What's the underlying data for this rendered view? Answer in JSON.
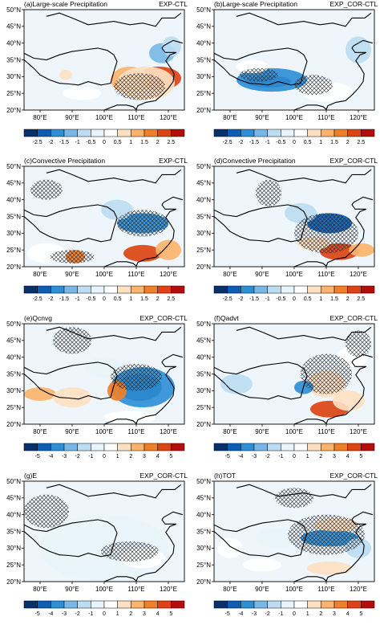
{
  "panels": [
    {
      "id": "a",
      "title": "(a)Large-scale Precipitation",
      "case": "EXP-CTL",
      "cbar": "p"
    },
    {
      "id": "b",
      "title": "(b)Large-scale Precipitation",
      "case": "EXP_COR-CTL",
      "cbar": "p"
    },
    {
      "id": "c",
      "title": "(c)Convective Precipitation",
      "case": "EXP-CTL",
      "cbar": "p"
    },
    {
      "id": "d",
      "title": "(d)Convective Precipitation",
      "case": "EXP_COR-CTL",
      "cbar": "p"
    },
    {
      "id": "e",
      "title": "(e)Qcnvg",
      "case": "EXP_COR-CTL",
      "cbar": "q"
    },
    {
      "id": "f",
      "title": "(f)Qadvt",
      "case": "EXP_COR-CTL",
      "cbar": "q"
    },
    {
      "id": "g",
      "title": "(g)E",
      "case": "EXP_COR-CTL",
      "cbar": "q"
    },
    {
      "id": "h",
      "title": "(h)TOT",
      "case": "EXP_COR-CTL",
      "cbar": "q"
    }
  ],
  "chart_data": {
    "type": "heatmap",
    "x_ticks": [
      "80°E",
      "90°E",
      "100°E",
      "110°E",
      "120°E"
    ],
    "y_ticks": [
      "20°N",
      "25°N",
      "30°N",
      "35°N",
      "40°N",
      "45°N",
      "50°N"
    ],
    "xlim": [
      75,
      125
    ],
    "ylim": [
      20,
      50
    ],
    "colorbar_precip": {
      "labels": [
        "-2.5",
        "-2",
        "-1.5",
        "-1",
        "-0.5",
        "0",
        "0.5",
        "1",
        "1.5",
        "2",
        "2.5"
      ],
      "colors": [
        "#08306b",
        "#0c5db5",
        "#2f8fd6",
        "#79b8e6",
        "#bcdcf2",
        "#e8f3fb",
        "#ffffff",
        "#fde0c2",
        "#fbb36b",
        "#f07f2a",
        "#dc4414",
        "#b20e0e"
      ]
    },
    "colorbar_moisture": {
      "labels": [
        "-5",
        "-4",
        "-3",
        "-2",
        "-1",
        "0",
        "1",
        "2",
        "3",
        "4",
        "5"
      ],
      "colors": [
        "#08306b",
        "#0c5db5",
        "#2f8fd6",
        "#79b8e6",
        "#bcdcf2",
        "#e8f3fb",
        "#ffffff",
        "#fde0c2",
        "#fbb36b",
        "#f07f2a",
        "#dc4414",
        "#b20e0e"
      ]
    },
    "fields": {
      "a": [
        {
          "lon": 117,
          "lat": 29.5,
          "value": 2.5,
          "rx": 7,
          "ry": 3.5
        },
        {
          "lon": 108,
          "lat": 29,
          "value": 1.5,
          "rx": 6,
          "ry": 4
        },
        {
          "lon": 113,
          "lat": 28,
          "value": 1.0,
          "rx": 9,
          "ry": 5
        },
        {
          "lon": 88,
          "lat": 30.5,
          "value": 1.0,
          "rx": 2,
          "ry": 1.5
        },
        {
          "lon": 118,
          "lat": 37,
          "value": -1.0,
          "rx": 4,
          "ry": 3
        },
        {
          "lon": 121,
          "lat": 39,
          "value": -0.5,
          "rx": 3,
          "ry": 3
        },
        {
          "lon": 93,
          "lat": 25,
          "value": 0.5,
          "rx": 6,
          "ry": 2
        }
      ],
      "b": [
        {
          "lon": 92,
          "lat": 28.5,
          "value": -2.5,
          "rx": 7,
          "ry": 1.8
        },
        {
          "lon": 93,
          "lat": 29,
          "value": -1.5,
          "rx": 11,
          "ry": 3.5
        },
        {
          "lon": 110,
          "lat": 25.5,
          "value": 0.5,
          "rx": 8,
          "ry": 3
        },
        {
          "lon": 120,
          "lat": 38,
          "value": -0.5,
          "rx": 4,
          "ry": 4
        },
        {
          "lon": 87,
          "lat": 33,
          "value": 0.5,
          "rx": 5,
          "ry": 2
        }
      ],
      "c": [
        {
          "lon": 112,
          "lat": 33,
          "value": -1.5,
          "rx": 8,
          "ry": 3
        },
        {
          "lon": 112,
          "lat": 24,
          "value": 2.5,
          "rx": 6,
          "ry": 2.5
        },
        {
          "lon": 91,
          "lat": 23,
          "value": 2.0,
          "rx": 3,
          "ry": 2
        },
        {
          "lon": 120,
          "lat": 25,
          "value": 1.5,
          "rx": 4,
          "ry": 3
        },
        {
          "lon": 82,
          "lat": 24,
          "value": 0.5,
          "rx": 6,
          "ry": 3
        },
        {
          "lon": 104,
          "lat": 37,
          "value": -0.5,
          "rx": 5,
          "ry": 3
        }
      ],
      "d": [
        {
          "lon": 111,
          "lat": 33,
          "value": -2.0,
          "rx": 7,
          "ry": 3
        },
        {
          "lon": 114,
          "lat": 24.5,
          "value": 2.5,
          "rx": 6,
          "ry": 2.5
        },
        {
          "lon": 106,
          "lat": 27,
          "value": 1.0,
          "rx": 5,
          "ry": 2
        },
        {
          "lon": 121,
          "lat": 25,
          "value": 1.5,
          "rx": 4,
          "ry": 2
        },
        {
          "lon": 102,
          "lat": 36,
          "value": -0.5,
          "rx": 5,
          "ry": 3
        }
      ],
      "e": [
        {
          "lon": 111,
          "lat": 31,
          "value": -5.0,
          "rx": 7,
          "ry": 4
        },
        {
          "lon": 112,
          "lat": 31,
          "value": -3.0,
          "rx": 10,
          "ry": 6
        },
        {
          "lon": 80,
          "lat": 29,
          "value": 3.0,
          "rx": 5,
          "ry": 2
        },
        {
          "lon": 90,
          "lat": 28,
          "value": 2.0,
          "rx": 6,
          "ry": 3
        },
        {
          "lon": 104,
          "lat": 30,
          "value": 4.0,
          "rx": 3,
          "ry": 3
        },
        {
          "lon": 108,
          "lat": 22,
          "value": 1.0,
          "rx": 8,
          "ry": 2
        },
        {
          "lon": 100,
          "lat": 37,
          "value": -0.5,
          "rx": 6,
          "ry": 3
        }
      ],
      "f": [
        {
          "lon": 111,
          "lat": 24.5,
          "value": 5.0,
          "rx": 6,
          "ry": 2.5
        },
        {
          "lon": 110,
          "lat": 32,
          "value": 2.0,
          "rx": 6,
          "ry": 4
        },
        {
          "lon": 103,
          "lat": 31,
          "value": -3.0,
          "rx": 3,
          "ry": 2
        },
        {
          "lon": 117,
          "lat": 27,
          "value": 2.0,
          "rx": 5,
          "ry": 3
        },
        {
          "lon": 82,
          "lat": 32,
          "value": -1.0,
          "rx": 5,
          "ry": 3
        },
        {
          "lon": 118,
          "lat": 40,
          "value": 1.0,
          "rx": 5,
          "ry": 3
        }
      ],
      "g": [
        {
          "lon": 100,
          "lat": 30,
          "value": -0.5,
          "rx": 20,
          "ry": 10
        },
        {
          "lon": 112,
          "lat": 27,
          "value": 0.5,
          "rx": 7,
          "ry": 3
        }
      ],
      "h": [
        {
          "lon": 111,
          "lat": 33,
          "value": -3.0,
          "rx": 9,
          "ry": 2.5
        },
        {
          "lon": 113,
          "lat": 37,
          "value": 2.0,
          "rx": 7,
          "ry": 2
        },
        {
          "lon": 111,
          "lat": 24,
          "value": 2.0,
          "rx": 7,
          "ry": 2
        },
        {
          "lon": 90,
          "lat": 25,
          "value": 1.0,
          "rx": 6,
          "ry": 2
        },
        {
          "lon": 80,
          "lat": 30,
          "value": 0.5,
          "rx": 4,
          "ry": 3
        },
        {
          "lon": 95,
          "lat": 33,
          "value": -0.5,
          "rx": 7,
          "ry": 3
        },
        {
          "lon": 120,
          "lat": 30,
          "value": -1.0,
          "rx": 4,
          "ry": 3
        }
      ]
    },
    "hatching": {
      "a": [
        {
          "lon": 111,
          "lat": 27,
          "rx": 8,
          "ry": 4
        }
      ],
      "b": [
        {
          "lon": 106,
          "lat": 27.5,
          "rx": 6,
          "ry": 3
        },
        {
          "lon": 89,
          "lat": 30.5,
          "rx": 6,
          "ry": 2
        }
      ],
      "c": [
        {
          "lon": 112,
          "lat": 33,
          "rx": 8,
          "ry": 4
        },
        {
          "lon": 90,
          "lat": 23,
          "rx": 7,
          "ry": 2
        },
        {
          "lon": 82,
          "lat": 43,
          "rx": 5,
          "ry": 3
        }
      ],
      "d": [
        {
          "lon": 110,
          "lat": 30,
          "rx": 10,
          "ry": 6
        },
        {
          "lon": 92,
          "lat": 42,
          "rx": 4,
          "ry": 4
        }
      ],
      "e": [
        {
          "lon": 110,
          "lat": 34,
          "rx": 8,
          "ry": 4
        },
        {
          "lon": 90,
          "lat": 45,
          "rx": 6,
          "ry": 4
        }
      ],
      "f": [
        {
          "lon": 110,
          "lat": 35,
          "rx": 8,
          "ry": 6
        },
        {
          "lon": 120,
          "lat": 44,
          "rx": 4,
          "ry": 4
        }
      ],
      "g": [
        {
          "lon": 82,
          "lat": 41,
          "rx": 7,
          "ry": 5
        },
        {
          "lon": 108,
          "lat": 29,
          "rx": 9,
          "ry": 3
        }
      ],
      "h": [
        {
          "lon": 110,
          "lat": 34,
          "rx": 12,
          "ry": 6
        },
        {
          "lon": 100,
          "lat": 45,
          "rx": 6,
          "ry": 3
        }
      ]
    }
  }
}
